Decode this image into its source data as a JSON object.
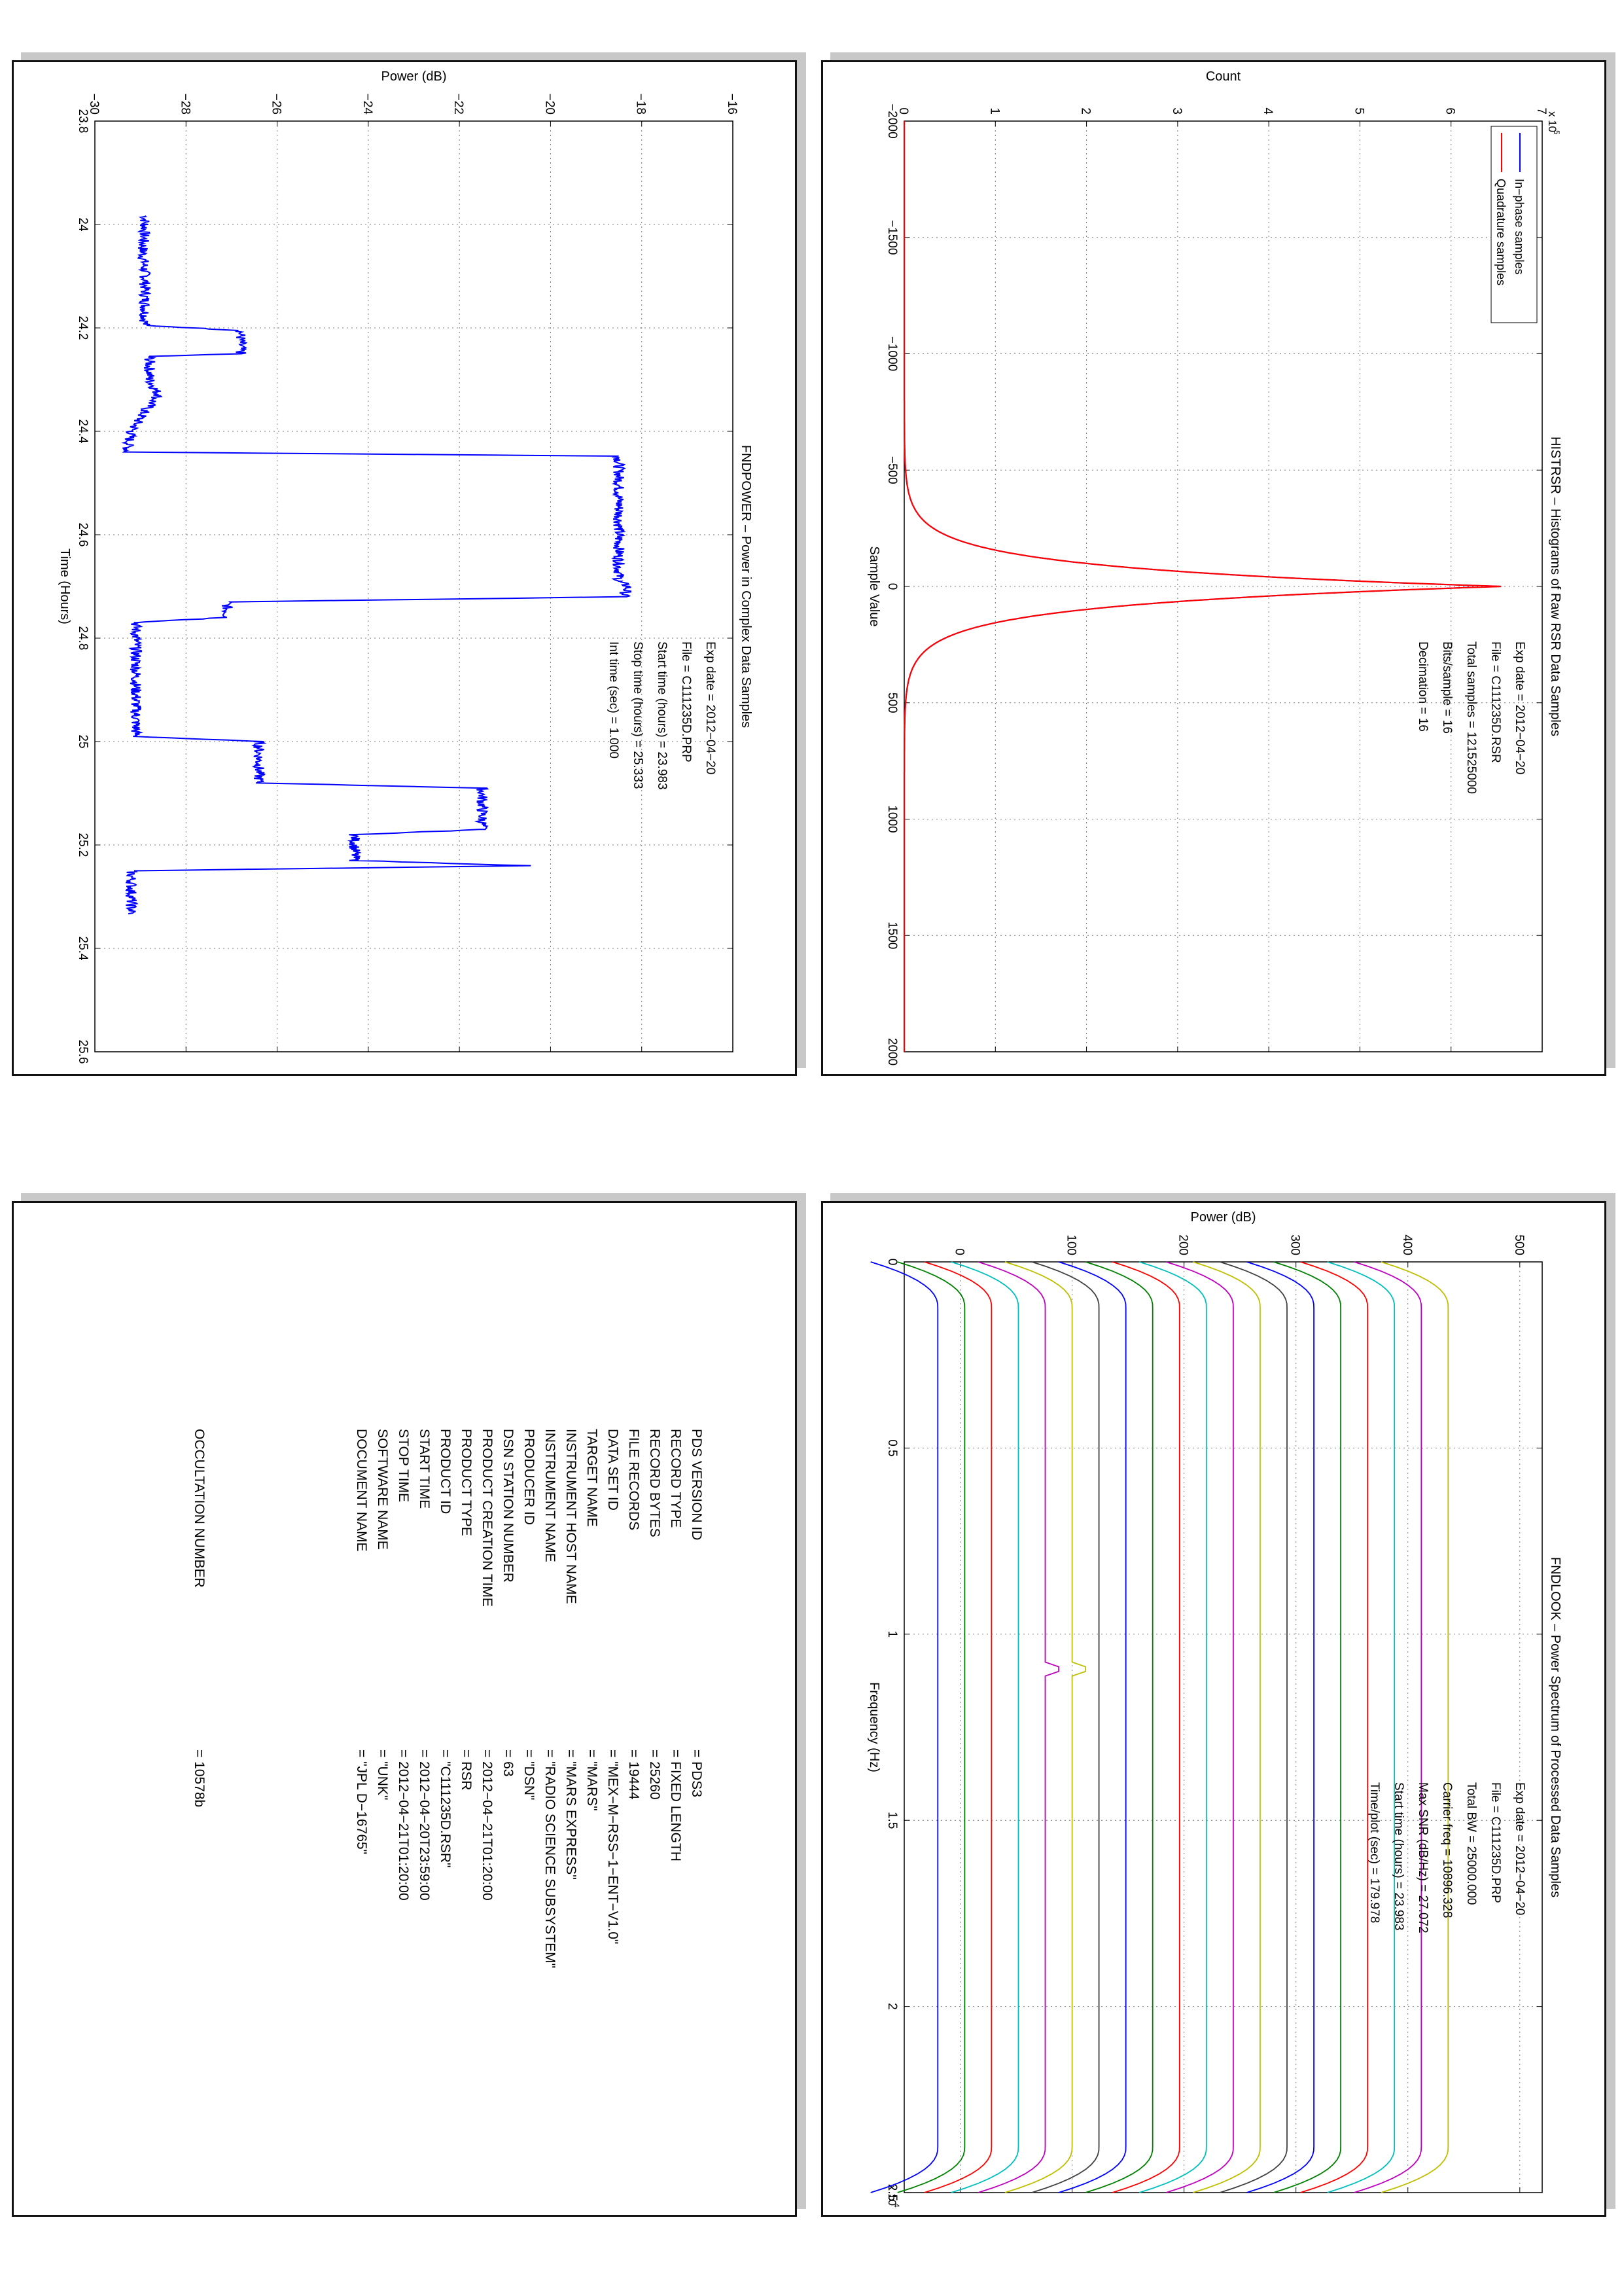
{
  "chart_data": [
    {
      "type": "line",
      "title": "HISTRSR – Histograms of Raw RSR Data Samples",
      "xlabel": "Sample Value",
      "ylabel": "Count",
      "y_multiplier_label": "x 10",
      "y_multiplier_exp": "5",
      "xlim": [
        -2000,
        2000
      ],
      "ylim": [
        0,
        700000
      ],
      "xticks": [
        "−2000",
        "−1500",
        "−1000",
        "−500",
        "0",
        "500",
        "1000",
        "1500",
        "2000"
      ],
      "yticks": [
        "0",
        "1",
        "2",
        "3",
        "4",
        "5",
        "6",
        "7"
      ],
      "xtick_values": [
        -2000,
        -1500,
        -1000,
        -500,
        0,
        500,
        1000,
        1500,
        2000
      ],
      "ytick_values": [
        0,
        100000,
        200000,
        300000,
        400000,
        500000,
        600000,
        700000
      ],
      "grid": true,
      "legend_position": "top-left",
      "series": [
        {
          "name": "In−phase samples",
          "color": "#0000ff",
          "peak": 655000,
          "sigma": 88
        },
        {
          "name": "Quadrature samples",
          "color": "#ff0000",
          "peak": 655000,
          "sigma": 88
        }
      ],
      "annotations": [
        "Exp date = 2012−04−20",
        "File = C111235D.RSR",
        "Total samples =  121525000",
        "Bits/sample  =         16",
        "Decimation   =         16"
      ]
    },
    {
      "type": "line",
      "title": "FNDPOWER – Power in Complex Data Samples",
      "xlabel": "Time (Hours)",
      "ylabel": "Power (dB)",
      "xlim": [
        23.8,
        25.6
      ],
      "ylim": [
        -30,
        -16
      ],
      "xticks": [
        "23.8",
        "24",
        "24.2",
        "24.4",
        "24.6",
        "24.8",
        "25",
        "25.2",
        "25.4",
        "25.6"
      ],
      "yticks": [
        "−30",
        "−28",
        "−26",
        "−24",
        "−22",
        "−20",
        "−18",
        "−16"
      ],
      "xtick_values": [
        23.8,
        24.0,
        24.2,
        24.4,
        24.6,
        24.8,
        25.0,
        25.2,
        25.4,
        25.6
      ],
      "ytick_values": [
        -30,
        -28,
        -26,
        -24,
        -22,
        -20,
        -18,
        -16
      ],
      "grid": true,
      "series": [
        {
          "name": "",
          "color": "#0000ff",
          "x": [
            23.983,
            24.0,
            24.05,
            24.1,
            24.15,
            24.195,
            24.205,
            24.25,
            24.255,
            24.3,
            24.33,
            24.36,
            24.4,
            24.44,
            24.448,
            24.5,
            24.55,
            24.6,
            24.65,
            24.69,
            24.7,
            24.72,
            24.73,
            24.76,
            24.77,
            24.85,
            24.95,
            24.99,
            25.0,
            25.05,
            25.08,
            25.09,
            25.15,
            25.17,
            25.18,
            25.23,
            25.24,
            25.25,
            25.333
          ],
          "y": [
            -28.9,
            -28.9,
            -28.95,
            -28.9,
            -28.9,
            -28.9,
            -26.8,
            -26.8,
            -28.8,
            -28.8,
            -28.6,
            -28.9,
            -29.2,
            -29.3,
            -18.5,
            -18.5,
            -18.5,
            -18.5,
            -18.5,
            -18.5,
            -18.3,
            -18.4,
            -27.1,
            -27.1,
            -29.1,
            -29.1,
            -29.1,
            -29.1,
            -26.4,
            -26.4,
            -26.4,
            -21.5,
            -21.5,
            -21.5,
            -24.3,
            -24.3,
            -20.5,
            -29.2,
            -29.2
          ]
        }
      ],
      "annotations": [
        "Exp date = 2012−04−20",
        "File = C111235D.PRP",
        "Start time (hours) = 23.983",
        "Stop time (hours)  = 25.333",
        "Int time (sec) =        1.000"
      ]
    },
    {
      "type": "line",
      "title": "FNDLOOK – Power Spectrum of Processed Data Samples",
      "xlabel": "Frequency (Hz)",
      "ylabel": "Power (dB)",
      "x_multiplier_label": "x 10",
      "x_multiplier_exp": "4",
      "xlim": [
        0,
        25000
      ],
      "ylim": [
        -50,
        520
      ],
      "xticks": [
        "0",
        "0.5",
        "1",
        "1.5",
        "2",
        "2.5"
      ],
      "yticks": [
        "0",
        "100",
        "200",
        "300",
        "400",
        "500"
      ],
      "xtick_values": [
        0,
        5000,
        10000,
        15000,
        20000,
        25000
      ],
      "ytick_values": [
        0,
        100,
        200,
        300,
        400,
        500
      ],
      "grid": true,
      "trace_count": 20,
      "trace_start_level": -20,
      "trace_level_step": 24,
      "trace_colors": [
        "#0000ff",
        "#008000",
        "#ff0000",
        "#00bfbf",
        "#bf00bf",
        "#bfbf00",
        "#404040"
      ],
      "spike_frequency": 10900,
      "annotations": [
        "Exp date = 2012−04−20",
        "File = C111235D.PRP",
        "Total BW =       25000.000",
        "Carrier freq =   10896.328",
        "Max SNR (dB/Hz) =    27.072",
        "Start time (hours) =    23.983",
        "Time/plot (sec) =    179.978"
      ]
    }
  ],
  "label": {
    "keys": [
      "PDS VERSION ID",
      "RECORD TYPE",
      "RECORD BYTES",
      "FILE RECORDS",
      "DATA SET ID",
      "TARGET NAME",
      "INSTRUMENT HOST NAME",
      "INSTRUMENT NAME",
      "PRODUCER ID",
      "DSN STATION NUMBER",
      "PRODUCT CREATION TIME",
      "PRODUCT TYPE",
      "PRODUCT ID",
      "START TIME",
      "STOP TIME",
      "SOFTWARE NAME",
      "DOCUMENT NAME"
    ],
    "values": [
      "=  PDS3",
      "=  FIXED LENGTH",
      "=  25260",
      "=  19444",
      "=  \"MEX−M−RSS−1−ENT−V1.0\"",
      "=  \"MARS\"",
      "=  \"MARS EXPRESS\"",
      "=  \"RADIO SCIENCE SUBSYSTEM\"",
      "=  \"DSN\"",
      "=  63",
      "=  2012−04−21T01:20:00",
      "=  RSR",
      "=  \"C111235D.RSR\"",
      "=  2012−04−20T23:59:00",
      "=  2012−04−21T01:20:00",
      "=  \"UNK\"",
      "=  \"JPL D−16765\""
    ],
    "occultation_key": "OCCULTATION NUMBER",
    "occultation_value": "=  10578b"
  }
}
